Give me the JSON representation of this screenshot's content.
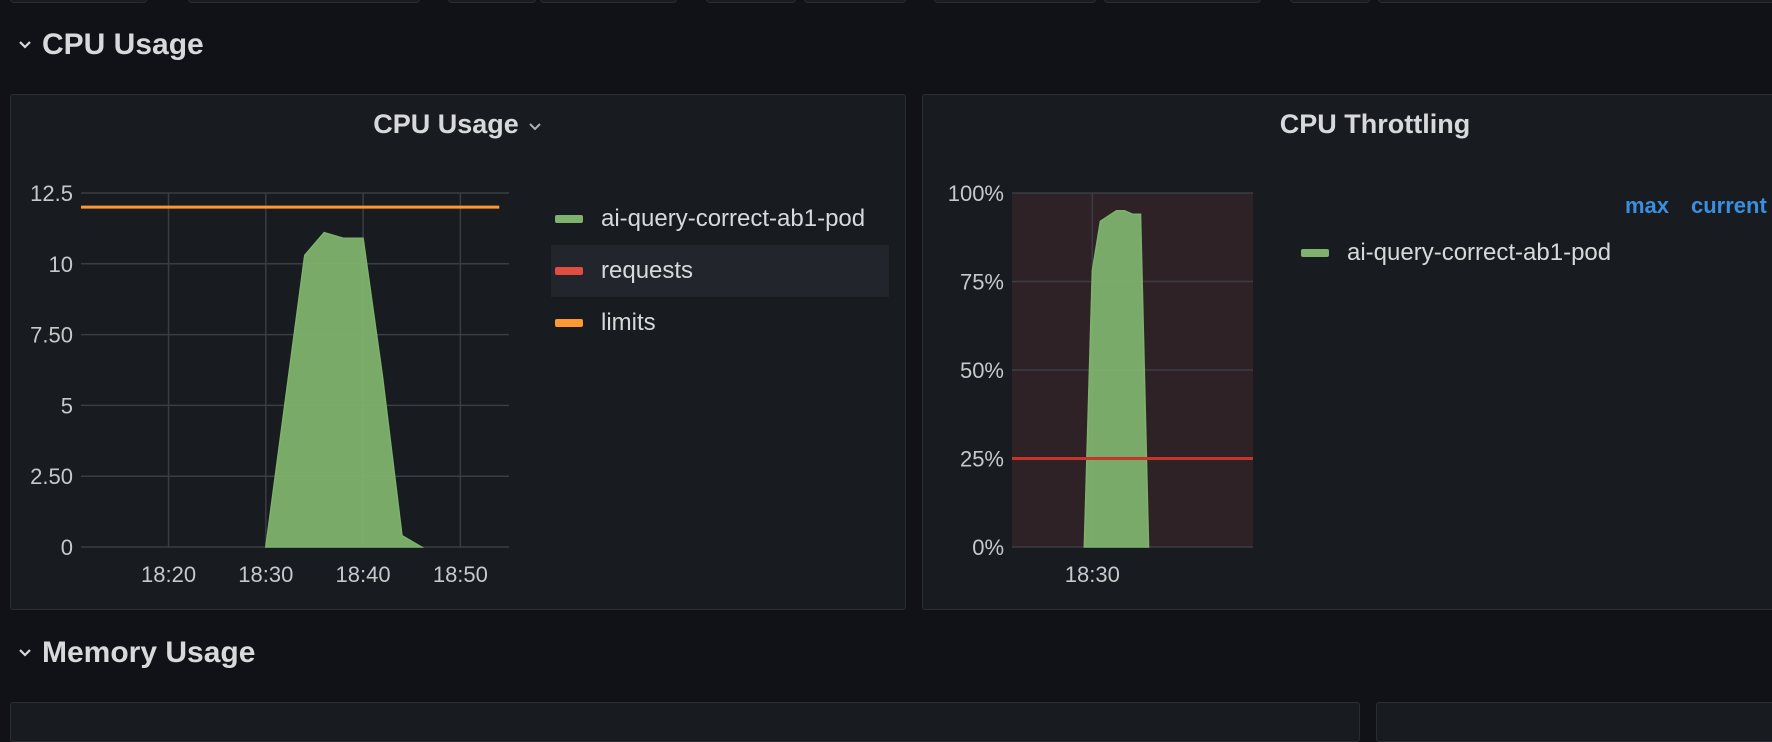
{
  "rows": {
    "cpu": {
      "title": "CPU Usage"
    },
    "memory": {
      "title": "Memory Usage"
    }
  },
  "colors": {
    "series_green": "#7eb26d",
    "requests_red": "#e24d42",
    "limits_orange": "#ff9830",
    "link_blue": "#3a8fe0",
    "throttle_bg": "#2f2226",
    "threshold_red": "#c4362a"
  },
  "panels": {
    "cpu_usage": {
      "title": "CPU Usage",
      "legend": [
        {
          "label": "ai-query-correct-ab1-pod",
          "color": "#7eb26d"
        },
        {
          "label": "requests",
          "color": "#e24d42"
        },
        {
          "label": "limits",
          "color": "#ff9830"
        }
      ]
    },
    "cpu_throttling": {
      "title": "CPU Throttling",
      "legend_headers": {
        "max": "max",
        "current": "current"
      },
      "legend": [
        {
          "label": "ai-query-correct-ab1-pod",
          "color": "#7eb26d"
        }
      ]
    }
  },
  "chart_data": [
    {
      "type": "area",
      "title": "CPU Usage",
      "x_ticks": [
        "18:20",
        "18:30",
        "18:40",
        "18:50"
      ],
      "y_ticks": [
        "0",
        "2.50",
        "5",
        "7.50",
        "10",
        "12.5"
      ],
      "ylim": [
        0,
        12.5
      ],
      "xlim": [
        "18:11",
        "18:55"
      ],
      "grid": true,
      "legend_position": "right",
      "series": [
        {
          "name": "ai-query-correct-ab1-pod",
          "x": [
            "18:30",
            "18:34",
            "18:36",
            "18:38",
            "18:40",
            "18:42",
            "18:44",
            "18:46"
          ],
          "values": [
            0,
            10.3,
            11.1,
            10.9,
            10.9,
            6.0,
            0.4,
            0
          ]
        },
        {
          "name": "requests",
          "x": [],
          "values": []
        },
        {
          "name": "limits",
          "x": [
            "18:11",
            "18:54"
          ],
          "values": [
            12,
            12
          ]
        }
      ]
    },
    {
      "type": "area",
      "title": "CPU Throttling",
      "x_ticks": [
        "18:30"
      ],
      "y_ticks": [
        "0%",
        "25%",
        "50%",
        "75%",
        "100%"
      ],
      "ylim": [
        0,
        100
      ],
      "xlim": [
        "18:25",
        "18:40"
      ],
      "grid": true,
      "legend_position": "right",
      "thresholds": [
        25
      ],
      "series": [
        {
          "name": "ai-query-correct-ab1-pod",
          "x": [
            "18:29.5",
            "18:30",
            "18:30.5",
            "18:31.5",
            "18:32",
            "18:32.5",
            "18:33",
            "18:33.5"
          ],
          "values": [
            0,
            78,
            92,
            95,
            95,
            94,
            94,
            0
          ]
        }
      ]
    }
  ]
}
